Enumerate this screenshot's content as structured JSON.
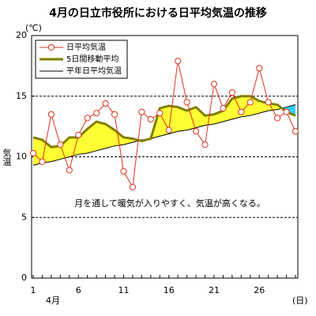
{
  "chart_data": {
    "type": "line",
    "title": "4月の日立市役所における日平均気温の推移",
    "y_unit": "(℃)",
    "y_label": "気温",
    "x_month": "4月",
    "x_unit": "(日)",
    "annotation": "月を通して暖気が入りやすく、気温が高くなる。",
    "categories": [
      1,
      null,
      null,
      null,
      null,
      6,
      null,
      null,
      null,
      null,
      11,
      null,
      null,
      null,
      null,
      16,
      null,
      null,
      null,
      null,
      21,
      null,
      null,
      null,
      null,
      26,
      null,
      null,
      null,
      null
    ],
    "series": [
      {
        "name": "日平均気温",
        "color": "#e03020",
        "marker": "circle",
        "values": [
          10.3,
          9.6,
          13.5,
          11.0,
          8.9,
          11.8,
          13.2,
          13.6,
          14.4,
          13.5,
          8.8,
          7.5,
          13.7,
          13.1,
          13.6,
          12.2,
          17.9,
          14.5,
          12.1,
          11.0,
          16.0,
          14.0,
          15.3,
          13.7,
          14.5,
          17.3,
          14.5,
          13.2,
          13.7,
          12.1
        ]
      },
      {
        "name": "5日間移動平均",
        "color": "#808000",
        "values": [
          11.6,
          11.4,
          10.8,
          10.9,
          11.6,
          11.6,
          12.3,
          12.9,
          12.7,
          12.2,
          11.6,
          11.5,
          11.3,
          11.5,
          14.0,
          14.2,
          14.1,
          13.8,
          14.1,
          13.4,
          13.5,
          13.8,
          14.8,
          15.0,
          15.0,
          14.6,
          14.4,
          14.3,
          13.7,
          13.4
        ]
      },
      {
        "name": "平年日平均気温",
        "color": "#000000",
        "values": [
          9.3,
          9.5,
          9.6,
          9.8,
          10.0,
          10.2,
          10.3,
          10.5,
          10.7,
          10.9,
          11.0,
          11.2,
          11.4,
          11.5,
          11.7,
          11.9,
          12.1,
          12.2,
          12.4,
          12.6,
          12.7,
          12.9,
          13.1,
          13.3,
          13.4,
          13.6,
          13.8,
          13.9,
          14.1,
          14.3
        ]
      }
    ],
    "above_color": "#ffff33",
    "below_color": "#33ccff",
    "ylim": [
      0,
      20
    ],
    "yticks": [
      0,
      5,
      10,
      15,
      20
    ],
    "grid": true
  }
}
